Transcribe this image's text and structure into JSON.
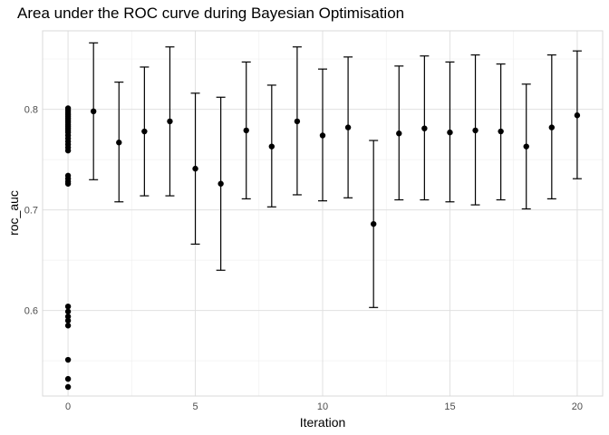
{
  "chart_data": {
    "type": "scatter",
    "title": "Area under the ROC curve during Bayesian Optimisation",
    "xlabel": "Iteration",
    "ylabel": "roc_auc",
    "xlim": [
      -1,
      21
    ],
    "ylim": [
      0.515,
      0.878
    ],
    "x_ticks": [
      0,
      5,
      10,
      15,
      20
    ],
    "y_ticks": [
      0.6,
      0.7,
      0.8
    ],
    "x_tick_labels": [
      "0",
      "5",
      "10",
      "15",
      "20"
    ],
    "y_tick_labels": [
      "0.6",
      "0.7",
      "0.8"
    ],
    "grid": true,
    "legend": "none",
    "initial_points": {
      "x": 0,
      "y": [
        0.801,
        0.799,
        0.797,
        0.795,
        0.793,
        0.791,
        0.789,
        0.787,
        0.785,
        0.783,
        0.781,
        0.779,
        0.777,
        0.774,
        0.771,
        0.768,
        0.765,
        0.762,
        0.759,
        0.734,
        0.731,
        0.728,
        0.726,
        0.604,
        0.599,
        0.594,
        0.59,
        0.585,
        0.551,
        0.532,
        0.524
      ]
    },
    "iterations": [
      {
        "x": 1,
        "mean": 0.798,
        "low": 0.73,
        "high": 0.866
      },
      {
        "x": 2,
        "mean": 0.767,
        "low": 0.708,
        "high": 0.827
      },
      {
        "x": 3,
        "mean": 0.778,
        "low": 0.714,
        "high": 0.842
      },
      {
        "x": 4,
        "mean": 0.788,
        "low": 0.714,
        "high": 0.862
      },
      {
        "x": 5,
        "mean": 0.741,
        "low": 0.666,
        "high": 0.816
      },
      {
        "x": 6,
        "mean": 0.726,
        "low": 0.64,
        "high": 0.812
      },
      {
        "x": 7,
        "mean": 0.779,
        "low": 0.711,
        "high": 0.847
      },
      {
        "x": 8,
        "mean": 0.763,
        "low": 0.703,
        "high": 0.824
      },
      {
        "x": 9,
        "mean": 0.788,
        "low": 0.715,
        "high": 0.862
      },
      {
        "x": 10,
        "mean": 0.774,
        "low": 0.709,
        "high": 0.84
      },
      {
        "x": 11,
        "mean": 0.782,
        "low": 0.712,
        "high": 0.852
      },
      {
        "x": 12,
        "mean": 0.686,
        "low": 0.603,
        "high": 0.769
      },
      {
        "x": 13,
        "mean": 0.776,
        "low": 0.71,
        "high": 0.843
      },
      {
        "x": 14,
        "mean": 0.781,
        "low": 0.71,
        "high": 0.853
      },
      {
        "x": 15,
        "mean": 0.777,
        "low": 0.708,
        "high": 0.847
      },
      {
        "x": 16,
        "mean": 0.779,
        "low": 0.705,
        "high": 0.854
      },
      {
        "x": 17,
        "mean": 0.778,
        "low": 0.71,
        "high": 0.845
      },
      {
        "x": 18,
        "mean": 0.763,
        "low": 0.701,
        "high": 0.825
      },
      {
        "x": 19,
        "mean": 0.782,
        "low": 0.711,
        "high": 0.854
      },
      {
        "x": 20,
        "mean": 0.794,
        "low": 0.731,
        "high": 0.858
      }
    ]
  }
}
